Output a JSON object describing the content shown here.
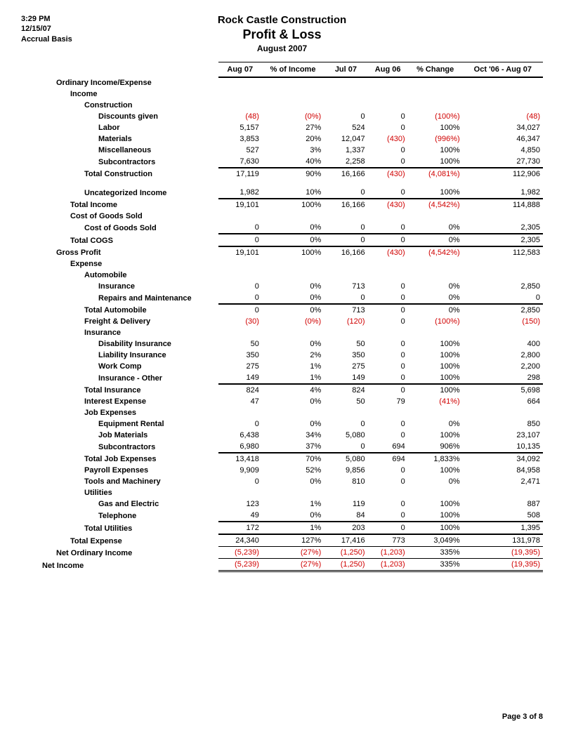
{
  "meta": {
    "time": "3:29 PM",
    "date": "12/15/07",
    "basis": "Accrual Basis"
  },
  "title": {
    "company": "Rock Castle Construction",
    "report": "Profit & Loss",
    "period": "August 2007"
  },
  "columns": {
    "label": "",
    "aug07": "Aug 07",
    "pct": "% of Income",
    "jul07": "Jul 07",
    "aug06": "Aug 06",
    "chg": "% Change",
    "range": "Oct '06 - Aug 07"
  },
  "rows": [
    {
      "label": "Ordinary Income/Expense",
      "indent": 1,
      "header": true
    },
    {
      "label": "Income",
      "indent": 2,
      "header": true
    },
    {
      "label": "Construction",
      "indent": 3,
      "header": true
    },
    {
      "label": "Discounts given",
      "indent": 4,
      "aug07": "(48)",
      "pct": "(0%)",
      "jul07": "0",
      "aug06": "0",
      "chg": "(100%)",
      "range": "(48)",
      "neg": [
        "aug07",
        "pct",
        "chg",
        "range"
      ]
    },
    {
      "label": "Labor",
      "indent": 4,
      "aug07": "5,157",
      "pct": "27%",
      "jul07": "524",
      "aug06": "0",
      "chg": "100%",
      "range": "34,027"
    },
    {
      "label": "Materials",
      "indent": 4,
      "aug07": "3,853",
      "pct": "20%",
      "jul07": "12,047",
      "aug06": "(430)",
      "chg": "(996%)",
      "range": "46,347",
      "neg": [
        "aug06",
        "chg"
      ]
    },
    {
      "label": "Miscellaneous",
      "indent": 4,
      "aug07": "527",
      "pct": "3%",
      "jul07": "1,337",
      "aug06": "0",
      "chg": "100%",
      "range": "4,850"
    },
    {
      "label": "Subcontractors",
      "indent": 4,
      "aug07": "7,630",
      "pct": "40%",
      "jul07": "2,258",
      "aug06": "0",
      "chg": "100%",
      "range": "27,730"
    },
    {
      "label": "Total Construction",
      "indent": 3,
      "aug07": "17,119",
      "pct": "90%",
      "jul07": "16,166",
      "aug06": "(430)",
      "chg": "(4,081%)",
      "range": "112,906",
      "neg": [
        "aug06",
        "chg"
      ],
      "border": "bt2"
    },
    {
      "spacer": true
    },
    {
      "label": "Uncategorized Income",
      "indent": 3,
      "aug07": "1,982",
      "pct": "10%",
      "jul07": "0",
      "aug06": "0",
      "chg": "100%",
      "range": "1,982"
    },
    {
      "label": "Total Income",
      "indent": 2,
      "aug07": "19,101",
      "pct": "100%",
      "jul07": "16,166",
      "aug06": "(430)",
      "chg": "(4,542%)",
      "range": "114,888",
      "neg": [
        "aug06",
        "chg"
      ],
      "border": "bt2"
    },
    {
      "label": "Cost of Goods Sold",
      "indent": 2,
      "header": true
    },
    {
      "label": "Cost of Goods Sold",
      "indent": 3,
      "aug07": "0",
      "pct": "0%",
      "jul07": "0",
      "aug06": "0",
      "chg": "0%",
      "range": "2,305"
    },
    {
      "label": "Total COGS",
      "indent": 2,
      "aug07": "0",
      "pct": "0%",
      "jul07": "0",
      "aug06": "0",
      "chg": "0%",
      "range": "2,305",
      "border": "bt2"
    },
    {
      "label": "Gross Profit",
      "indent": 1,
      "aug07": "19,101",
      "pct": "100%",
      "jul07": "16,166",
      "aug06": "(430)",
      "chg": "(4,542%)",
      "range": "112,583",
      "neg": [
        "aug06",
        "chg"
      ],
      "border": "bt2"
    },
    {
      "label": "Expense",
      "indent": 2,
      "header": true
    },
    {
      "label": "Automobile",
      "indent": 3,
      "header": true
    },
    {
      "label": "Insurance",
      "indent": 4,
      "aug07": "0",
      "pct": "0%",
      "jul07": "713",
      "aug06": "0",
      "chg": "0%",
      "range": "2,850"
    },
    {
      "label": "Repairs and Maintenance",
      "indent": 4,
      "aug07": "0",
      "pct": "0%",
      "jul07": "0",
      "aug06": "0",
      "chg": "0%",
      "range": "0"
    },
    {
      "label": "Total Automobile",
      "indent": 3,
      "aug07": "0",
      "pct": "0%",
      "jul07": "713",
      "aug06": "0",
      "chg": "0%",
      "range": "2,850",
      "border": "bt2"
    },
    {
      "label": "Freight & Delivery",
      "indent": 3,
      "aug07": "(30)",
      "pct": "(0%)",
      "jul07": "(120)",
      "aug06": "0",
      "chg": "(100%)",
      "range": "(150)",
      "neg": [
        "aug07",
        "pct",
        "jul07",
        "chg",
        "range"
      ]
    },
    {
      "label": "Insurance",
      "indent": 3,
      "header": true
    },
    {
      "label": "Disability Insurance",
      "indent": 4,
      "aug07": "50",
      "pct": "0%",
      "jul07": "50",
      "aug06": "0",
      "chg": "100%",
      "range": "400"
    },
    {
      "label": "Liability Insurance",
      "indent": 4,
      "aug07": "350",
      "pct": "2%",
      "jul07": "350",
      "aug06": "0",
      "chg": "100%",
      "range": "2,800"
    },
    {
      "label": "Work Comp",
      "indent": 4,
      "aug07": "275",
      "pct": "1%",
      "jul07": "275",
      "aug06": "0",
      "chg": "100%",
      "range": "2,200"
    },
    {
      "label": "Insurance - Other",
      "indent": 4,
      "aug07": "149",
      "pct": "1%",
      "jul07": "149",
      "aug06": "0",
      "chg": "100%",
      "range": "298"
    },
    {
      "label": "Total Insurance",
      "indent": 3,
      "aug07": "824",
      "pct": "4%",
      "jul07": "824",
      "aug06": "0",
      "chg": "100%",
      "range": "5,698",
      "border": "bt2"
    },
    {
      "label": "Interest Expense",
      "indent": 3,
      "aug07": "47",
      "pct": "0%",
      "jul07": "50",
      "aug06": "79",
      "chg": "(41%)",
      "range": "664",
      "neg": [
        "chg"
      ]
    },
    {
      "label": "Job Expenses",
      "indent": 3,
      "header": true
    },
    {
      "label": "Equipment Rental",
      "indent": 4,
      "aug07": "0",
      "pct": "0%",
      "jul07": "0",
      "aug06": "0",
      "chg": "0%",
      "range": "850"
    },
    {
      "label": "Job Materials",
      "indent": 4,
      "aug07": "6,438",
      "pct": "34%",
      "jul07": "5,080",
      "aug06": "0",
      "chg": "100%",
      "range": "23,107"
    },
    {
      "label": "Subcontractors",
      "indent": 4,
      "aug07": "6,980",
      "pct": "37%",
      "jul07": "0",
      "aug06": "694",
      "chg": "906%",
      "range": "10,135"
    },
    {
      "label": "Total Job Expenses",
      "indent": 3,
      "aug07": "13,418",
      "pct": "70%",
      "jul07": "5,080",
      "aug06": "694",
      "chg": "1,833%",
      "range": "34,092",
      "border": "bt2"
    },
    {
      "label": "Payroll Expenses",
      "indent": 3,
      "aug07": "9,909",
      "pct": "52%",
      "jul07": "9,856",
      "aug06": "0",
      "chg": "100%",
      "range": "84,958"
    },
    {
      "label": "Tools and Machinery",
      "indent": 3,
      "aug07": "0",
      "pct": "0%",
      "jul07": "810",
      "aug06": "0",
      "chg": "0%",
      "range": "2,471"
    },
    {
      "label": "Utilities",
      "indent": 3,
      "header": true
    },
    {
      "label": "Gas and Electric",
      "indent": 4,
      "aug07": "123",
      "pct": "1%",
      "jul07": "119",
      "aug06": "0",
      "chg": "100%",
      "range": "887"
    },
    {
      "label": "Telephone",
      "indent": 4,
      "aug07": "49",
      "pct": "0%",
      "jul07": "84",
      "aug06": "0",
      "chg": "100%",
      "range": "508"
    },
    {
      "label": "Total Utilities",
      "indent": 3,
      "aug07": "172",
      "pct": "1%",
      "jul07": "203",
      "aug06": "0",
      "chg": "100%",
      "range": "1,395",
      "border": "bt2"
    },
    {
      "label": "Total Expense",
      "indent": 2,
      "aug07": "24,340",
      "pct": "127%",
      "jul07": "17,416",
      "aug06": "773",
      "chg": "3,049%",
      "range": "131,978",
      "border": "bt2"
    },
    {
      "label": "Net Ordinary Income",
      "indent": 1,
      "aug07": "(5,239)",
      "pct": "(27%)",
      "jul07": "(1,250)",
      "aug06": "(1,203)",
      "chg": "335%",
      "range": "(19,395)",
      "neg": [
        "aug07",
        "pct",
        "jul07",
        "aug06",
        "range"
      ],
      "border": "bt"
    },
    {
      "label": "Net Income",
      "indent": 0,
      "aug07": "(5,239)",
      "pct": "(27%)",
      "jul07": "(1,250)",
      "aug06": "(1,203)",
      "chg": "335%",
      "range": "(19,395)",
      "neg": [
        "aug07",
        "pct",
        "jul07",
        "aug06",
        "range"
      ],
      "border": "db"
    }
  ],
  "footer": {
    "page": "Page 3 of 8"
  }
}
